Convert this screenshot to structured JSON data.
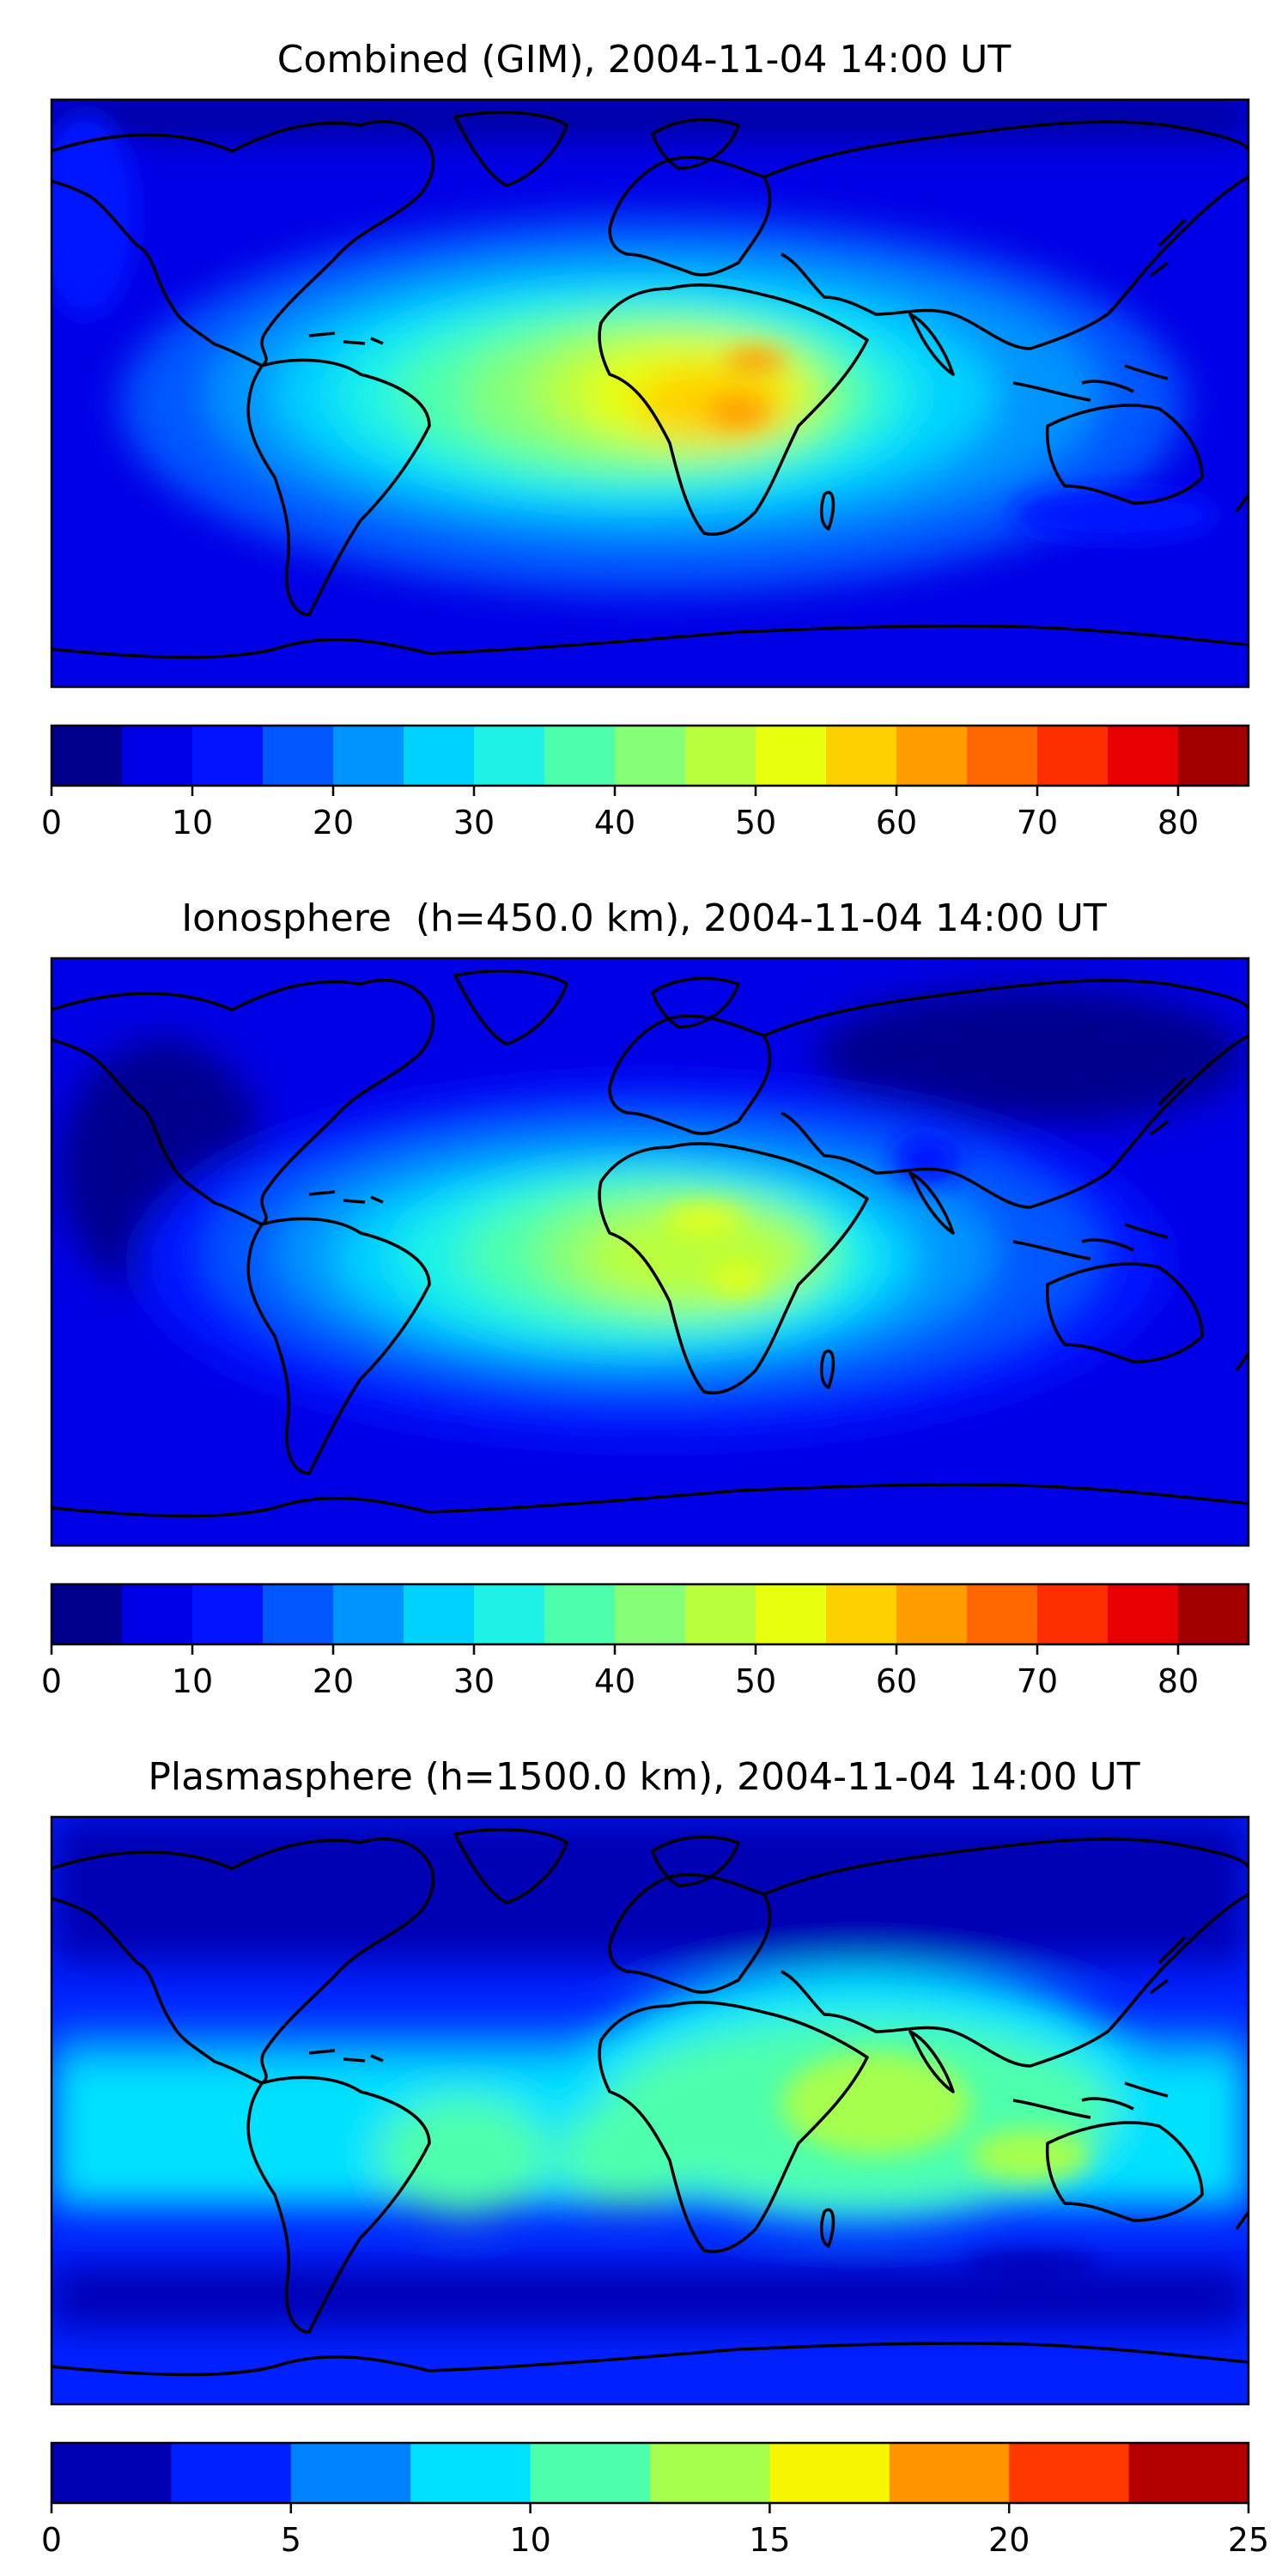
{
  "panels": [
    {
      "title": "Combined (GIM), 2004-11-04 14:00 UT",
      "colorbar": {
        "ticks": [
          "0",
          "10",
          "20",
          "30",
          "40",
          "50",
          "60",
          "70",
          "80"
        ],
        "tick_values": [
          0,
          10,
          20,
          30,
          40,
          50,
          60,
          70,
          80
        ],
        "range": [
          0,
          85
        ],
        "levels": 17,
        "colors": [
          "#00008d",
          "#0000e6",
          "#0012ff",
          "#0056ff",
          "#0094ff",
          "#00d2ff",
          "#1ef2e6",
          "#4dffad",
          "#86ff78",
          "#baff3c",
          "#e8ff0d",
          "#ffd000",
          "#ff9c00",
          "#ff6800",
          "#ff2e00",
          "#e60000",
          "#a20000"
        ]
      },
      "field": {
        "background": "#0000e6",
        "max_value": 60,
        "max_location": "central Africa"
      }
    },
    {
      "title": "Ionosphere  (h=450.0 km), 2004-11-04 14:00 UT",
      "colorbar": {
        "ticks": [
          "0",
          "10",
          "20",
          "30",
          "40",
          "50",
          "60",
          "70",
          "80"
        ],
        "tick_values": [
          0,
          10,
          20,
          30,
          40,
          50,
          60,
          70,
          80
        ],
        "range": [
          0,
          85
        ],
        "levels": 17,
        "colors": [
          "#00008d",
          "#0000e6",
          "#0012ff",
          "#0056ff",
          "#0094ff",
          "#00d2ff",
          "#1ef2e6",
          "#4dffad",
          "#86ff78",
          "#baff3c",
          "#e8ff0d",
          "#ffd000",
          "#ff9c00",
          "#ff6800",
          "#ff2e00",
          "#e60000",
          "#a20000"
        ]
      },
      "field": {
        "background": "#0000e6",
        "max_value": 55,
        "max_location": "central Africa"
      }
    },
    {
      "title": "Plasmasphere (h=1500.0 km), 2004-11-04 14:00 UT",
      "colorbar": {
        "ticks": [
          "0",
          "5",
          "10",
          "15",
          "20",
          "25"
        ],
        "tick_values": [
          0,
          5,
          10,
          15,
          20,
          25
        ],
        "range": [
          0,
          25
        ],
        "levels": 10,
        "colors": [
          "#0000b4",
          "#0021ff",
          "#0081ff",
          "#00e1ff",
          "#4dffad",
          "#a6ff4d",
          "#f6f600",
          "#ff9400",
          "#ff3800",
          "#b40000"
        ]
      },
      "field": {
        "background": "#0021ff",
        "max_value": 15,
        "max_location": "Arabia / Indian Ocean"
      }
    }
  ]
}
